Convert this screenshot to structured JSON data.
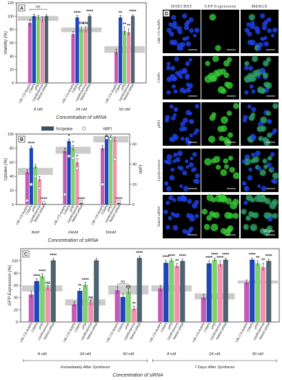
{
  "panel_letters": {
    "a": "A",
    "b": "B",
    "c": "C",
    "d": "D"
  },
  "micro": {
    "columns": [
      "HOECHST",
      "GFP Expression",
      "MERGE"
    ],
    "rows": [
      "LBL-CS-AuNPs",
      "CSNPs",
      "pPEI",
      "Lipofectamine",
      "Naked siRNA"
    ],
    "scale_label": "50 μm",
    "colors": {
      "nuclei": "#1d3fe0",
      "gfp": "#34c934",
      "background": "#000000"
    }
  },
  "colors": {
    "lbl_cs_aunps": "#c25ab8",
    "csnps": "#1d46b8",
    "ppei": "#7fd170",
    "lipofectamine": "#f38fb0",
    "naked_sirna": "#4e6370",
    "band": "#8f8f8f"
  },
  "chart_data": [
    {
      "type": "bar",
      "id": "A",
      "ylabel": "Viability (%)",
      "xlabel": "Concentration of siRNA",
      "ylim": [
        0,
        120
      ],
      "yticks": [
        0,
        20,
        40,
        60,
        80,
        100,
        120
      ],
      "groups": [
        "8 nM",
        "24 nM",
        "50 nM"
      ],
      "series": [
        {
          "name": "LBL-CS-AuNPs",
          "values": [
            90,
            73,
            46
          ],
          "errors": [
            5,
            4,
            4
          ]
        },
        {
          "name": "CSNPs",
          "values": [
            100,
            98,
            98
          ],
          "errors": [
            3,
            3,
            3
          ]
        },
        {
          "name": "pPEI",
          "values": [
            98,
            80,
            78
          ],
          "errors": [
            3,
            4,
            6
          ]
        },
        {
          "name": "Lipofectamine",
          "values": [
            95,
            80,
            76
          ],
          "errors": [
            4,
            4,
            5
          ]
        },
        {
          "name": "Naked siRNA",
          "values": [
            100,
            100,
            100
          ],
          "errors": [
            2,
            2,
            2
          ]
        }
      ],
      "bands": [
        {
          "group": 0,
          "lo": 93,
          "hi": 100
        },
        {
          "group": 1,
          "lo": 76,
          "hi": 83
        },
        {
          "group": 2,
          "lo": 45,
          "hi": 55
        }
      ],
      "annotations": [
        {
          "text": "ns",
          "group": 0,
          "pos": 2.5,
          "y": 112,
          "bracket": [
            0,
            4
          ]
        },
        {
          "text": "****",
          "group": 1,
          "pos": 1,
          "y": 103
        },
        {
          "text": "ns",
          "group": 1,
          "pos": 2,
          "y": 88
        },
        {
          "text": "ns",
          "group": 1,
          "pos": 3,
          "y": 88
        },
        {
          "text": "****",
          "group": 1,
          "pos": 4,
          "y": 105
        },
        {
          "text": "**",
          "group": 2,
          "pos": 1,
          "y": 103
        },
        {
          "text": "**",
          "group": 2,
          "pos": 2,
          "y": 86
        },
        {
          "text": "**",
          "group": 2,
          "pos": 3,
          "y": 84
        },
        {
          "text": "****",
          "group": 2,
          "pos": 4,
          "y": 105
        }
      ]
    },
    {
      "type": "bar",
      "id": "B",
      "ylabel": "Uptake (%)",
      "y2label": "tMFI",
      "xlabel": "Concentration of siRNA",
      "legend": [
        "%Uptake",
        "tMFI"
      ],
      "ylim": [
        0,
        100
      ],
      "yticks": [
        0,
        20,
        40,
        60,
        80,
        100
      ],
      "y2lim": [
        0,
        70
      ],
      "y2ticks": [
        0,
        20,
        40,
        60
      ],
      "groups": [
        "8nM",
        "24nM",
        "50nM"
      ],
      "series": [
        {
          "name": "LBL-CS-AuNPs",
          "values": [
            46,
            76,
            80
          ],
          "errors": [
            3,
            4,
            4
          ]
        },
        {
          "name": "CSNPs",
          "values": [
            80,
            90,
            98
          ],
          "errors": [
            3,
            3,
            2
          ]
        },
        {
          "name": "pPEI",
          "values": [
            54,
            80,
            95
          ],
          "errors": [
            3,
            4,
            3
          ]
        },
        {
          "name": "Lipofectamine",
          "values": [
            36,
            60,
            92
          ],
          "errors": [
            4,
            5,
            3
          ]
        },
        {
          "name": "Naked siRNA",
          "values": [
            2,
            2,
            2
          ],
          "errors": [
            1,
            1,
            1
          ]
        }
      ],
      "tmfi": [
        {
          "group": 0,
          "values": [
            4,
            20,
            28,
            16,
            2
          ]
        },
        {
          "group": 1,
          "values": [
            10,
            48,
            46,
            36,
            3
          ]
        },
        {
          "group": 2,
          "values": [
            20,
            66,
            65,
            45,
            3
          ]
        }
      ],
      "bands": [
        {
          "group": 0,
          "lo": 42,
          "hi": 52
        },
        {
          "group": 1,
          "lo": 72,
          "hi": 82
        },
        {
          "group": 2,
          "lo": 88,
          "hi": 97
        }
      ],
      "annotations": [
        {
          "text": "****",
          "group": 0,
          "pos": 1,
          "y": 85
        },
        {
          "text": "****",
          "group": 0,
          "pos": 4,
          "y": 6
        },
        {
          "text": "*",
          "group": 1,
          "pos": 1,
          "y": 95
        },
        {
          "text": "*",
          "group": 1,
          "pos": 2,
          "y": 86
        },
        {
          "text": "*",
          "group": 1,
          "pos": 3,
          "y": 66
        },
        {
          "text": "****",
          "group": 1,
          "pos": 4,
          "y": 6
        },
        {
          "text": "****",
          "group": 2,
          "pos": 4,
          "y": 6
        }
      ]
    },
    {
      "type": "bar",
      "id": "C",
      "ylabel": "GFP Expression (%)",
      "xlabel": "Concentration of siRNA",
      "ylim": [
        0,
        120
      ],
      "yticks": [
        0,
        20,
        40,
        60,
        80,
        100
      ],
      "groups": [
        "8 nM",
        "24 nM",
        "50 nM",
        "8 nM",
        "24 nM",
        "50 nM"
      ],
      "periods": [
        {
          "label": "Immediately After Synthesis",
          "from": 0,
          "to": 2
        },
        {
          "label": "7 Days After Synthesis",
          "from": 3,
          "to": 5
        }
      ],
      "series": [
        {
          "name": "LBL-CS-AuNPs",
          "values": [
            45,
            29,
            52,
            55,
            40,
            65
          ],
          "errors": [
            5,
            4,
            6,
            5,
            5,
            4
          ]
        },
        {
          "name": "CSNPs",
          "values": [
            67,
            51,
            41,
            97,
            96,
            102
          ],
          "errors": [
            4,
            4,
            5,
            4,
            4,
            3
          ]
        },
        {
          "name": "pPEI",
          "values": [
            75,
            61,
            50,
            101,
            102,
            96
          ],
          "errors": [
            4,
            4,
            5,
            3,
            3,
            4
          ]
        },
        {
          "name": "Lipofectamine",
          "values": [
            56,
            32,
            22,
            92,
            95,
            90
          ],
          "errors": [
            4,
            4,
            4,
            4,
            5,
            6
          ]
        },
        {
          "name": "Naked siRNA",
          "values": [
            101,
            101,
            105,
            100,
            102,
            100
          ],
          "errors": [
            3,
            3,
            3,
            3,
            3,
            3
          ]
        }
      ],
      "bands": [
        {
          "group": 0,
          "lo": 50,
          "hi": 60
        },
        {
          "group": 1,
          "lo": 27,
          "hi": 37
        },
        {
          "group": 2,
          "lo": 45,
          "hi": 60
        },
        {
          "group": 3,
          "lo": 50,
          "hi": 60
        },
        {
          "group": 4,
          "lo": 37,
          "hi": 47
        },
        {
          "group": 5,
          "lo": 63,
          "hi": 68
        }
      ],
      "annotations": [
        {
          "text": "****",
          "group": 0,
          "pos": 1,
          "y": 73
        },
        {
          "text": "****",
          "group": 0,
          "pos": 2,
          "y": 81
        },
        {
          "text": "ns",
          "group": 0,
          "pos": 3,
          "y": 62
        },
        {
          "text": "****",
          "group": 0,
          "pos": 4,
          "y": 107
        },
        {
          "text": "**",
          "group": 1,
          "pos": 1,
          "y": 57
        },
        {
          "text": "****",
          "group": 1,
          "pos": 2,
          "y": 67
        },
        {
          "text": "ns",
          "group": 1,
          "pos": 3,
          "y": 38
        },
        {
          "text": "ns",
          "group": 2,
          "pos": 1,
          "y": 64,
          "bracket": [
            0,
            2
          ]
        },
        {
          "text": "ns",
          "group": 2,
          "pos": 2,
          "y": 56
        },
        {
          "text": "**",
          "group": 2,
          "pos": 3,
          "y": 28
        },
        {
          "text": "****",
          "group": 2,
          "pos": 4,
          "y": 111
        },
        {
          "text": "****",
          "group": 3,
          "pos": 1,
          "y": 104
        },
        {
          "text": "****",
          "group": 3,
          "pos": 2,
          "y": 106
        },
        {
          "text": "**",
          "group": 3,
          "pos": 3,
          "y": 98
        },
        {
          "text": "****",
          "group": 3,
          "pos": 4,
          "y": 106
        },
        {
          "text": "****",
          "group": 4,
          "pos": 1,
          "y": 103
        },
        {
          "text": "****",
          "group": 4,
          "pos": 2,
          "y": 108
        },
        {
          "text": "****",
          "group": 4,
          "pos": 3,
          "y": 103
        },
        {
          "text": "****",
          "group": 4,
          "pos": 4,
          "y": 108
        },
        {
          "text": "****",
          "group": 5,
          "pos": 1,
          "y": 108
        },
        {
          "text": "**",
          "group": 5,
          "pos": 2,
          "y": 103
        },
        {
          "text": "**",
          "group": 5,
          "pos": 3,
          "y": 99
        },
        {
          "text": "****",
          "group": 5,
          "pos": 4,
          "y": 106
        }
      ]
    }
  ]
}
